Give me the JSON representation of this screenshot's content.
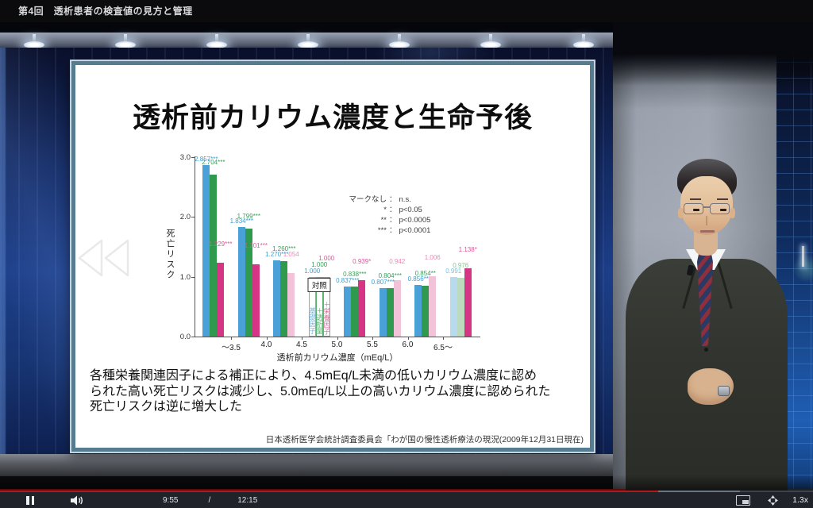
{
  "header": {
    "title": "第4回　透析患者の検査値の見方と管理"
  },
  "slide": {
    "title": "透析前カリウム濃度と生命予後",
    "body_lines": [
      "各種栄養関連因子による補正により、4.5mEq/L未満の低いカリウム濃度に認め",
      "られた高い死亡リスクは減少し、5.0mEq/L以上の高いカリウム濃度に認められた",
      "死亡リスクは逆に増大した"
    ],
    "citation": "日本透析医学会統計調査委員会「わが国の慢性透析療法の現況(2009年12月31日現在)"
  },
  "chart_data": {
    "type": "bar",
    "title": "透析前カリウム濃度と生命予後",
    "ylabel": "死亡リスク",
    "xlabel": "透析前カリウム濃度（mEq/L）",
    "ylim": [
      0.0,
      3.0
    ],
    "yticks": [
      {
        "label": "0.0",
        "value": 0.0
      },
      {
        "label": "1.0",
        "value": 1.0
      },
      {
        "label": "2.0",
        "value": 2.0
      },
      {
        "label": "3.0",
        "value": 3.0
      }
    ],
    "x_boundary_labels": [
      "～3.5",
      "4.0",
      "4.5",
      "5.0",
      "5.5",
      "6.0",
      "6.5～"
    ],
    "series_names": [
      "基礎因子",
      "＋透析量",
      "＋栄養因子"
    ],
    "control_label": "対照",
    "significance_legend": [
      [
        "マークなし",
        "n.s."
      ],
      [
        "*",
        "p<0.05"
      ],
      [
        "**",
        "p<0.0005"
      ],
      [
        "***",
        "p<0.0001"
      ]
    ],
    "palette": {
      "blue": {
        "fill": "#4aa1d8",
        "label": "#3a9fd8"
      },
      "green": {
        "fill": "#2f9a4e",
        "label": "#3aa05a"
      },
      "pink": {
        "fill": "#d63484",
        "label": "#e2559a"
      },
      "blue_light": {
        "fill": "#b7daee",
        "label": "#77c2e2"
      },
      "green_light": {
        "fill": "#bbdabe",
        "label": "#84c492"
      },
      "pink_light": {
        "fill": "#f2c3d8",
        "label": "#eb8ab5"
      },
      "outline_blue": {
        "fill": "#ffffff",
        "border": "#6ab4e0",
        "label": "#3a9fd8"
      },
      "outline_green": {
        "fill": "#ffffff",
        "border": "#58b06e",
        "label": "#3aa05a"
      },
      "outline_pink": {
        "fill": "#ffffff",
        "border": "#e06a9f",
        "label": "#e2559a"
      }
    },
    "groups": [
      {
        "bars": [
          {
            "value": 2.857,
            "label": "2.857***",
            "style": "blue"
          },
          {
            "value": 2.704,
            "label": "2.704***",
            "style": "green"
          },
          {
            "value": 1.229,
            "label": "1.229***",
            "style": "pink"
          }
        ]
      },
      {
        "bars": [
          {
            "value": 1.834,
            "label": "1.834***",
            "style": "blue"
          },
          {
            "value": 1.799,
            "label": "1.799***",
            "style": "green"
          },
          {
            "value": 1.201,
            "label": "1.201***",
            "style": "pink"
          }
        ]
      },
      {
        "bars": [
          {
            "value": 1.27,
            "label": "1.270***",
            "style": "blue"
          },
          {
            "value": 1.26,
            "label": "1.260***",
            "style": "green"
          },
          {
            "value": 1.054,
            "label": "1.054",
            "style": "pink_light"
          }
        ]
      },
      {
        "control": true,
        "bars": [
          {
            "value": 1.0,
            "label": "1.000",
            "style": "outline_blue",
            "inner_label": "基礎因子"
          },
          {
            "value": 1.0,
            "label": "1.000",
            "style": "outline_green",
            "inner_label": "＋透析量"
          },
          {
            "value": 1.0,
            "label": "1.000",
            "style": "outline_pink",
            "inner_label": "＋栄養因子"
          }
        ]
      },
      {
        "bars": [
          {
            "value": 0.837,
            "label": "0.837***",
            "style": "blue"
          },
          {
            "value": 0.838,
            "label": "0.838***",
            "style": "green"
          },
          {
            "value": 0.939,
            "label": "0.939*",
            "style": "pink"
          }
        ]
      },
      {
        "bars": [
          {
            "value": 0.807,
            "label": "0.807***",
            "style": "blue"
          },
          {
            "value": 0.804,
            "label": "0.804***",
            "style": "green"
          },
          {
            "value": 0.942,
            "label": "0.942",
            "style": "pink_light"
          }
        ]
      },
      {
        "bars": [
          {
            "value": 0.856,
            "label": "0.856**",
            "style": "blue"
          },
          {
            "value": 0.854,
            "label": "0.854**",
            "style": "green"
          },
          {
            "value": 1.006,
            "label": "1.006",
            "style": "pink_light"
          }
        ]
      },
      {
        "bars": [
          {
            "value": 0.991,
            "label": "0.991",
            "style": "blue_light"
          },
          {
            "value": 0.976,
            "label": "0.976",
            "style": "green_light"
          },
          {
            "value": 1.138,
            "label": "1.138*",
            "style": "pink"
          }
        ]
      }
    ]
  },
  "player": {
    "current_time": "9:55",
    "separator": "/",
    "duration": "12:15",
    "speed": "1.3x",
    "progress_percent": 81,
    "buffered_percent": 91,
    "accent_color": "#b01a1c",
    "icons": [
      "pause",
      "volume",
      "rewind-overlay",
      "picture-in-picture",
      "fullscreen"
    ]
  }
}
